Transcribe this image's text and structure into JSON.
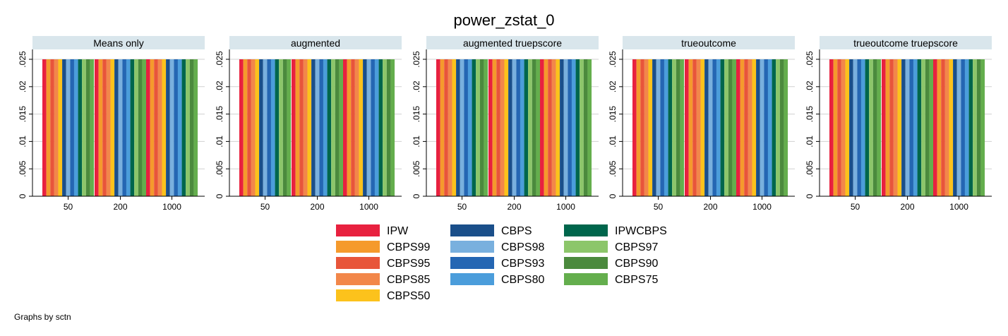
{
  "chart_data": {
    "type": "bar",
    "title": "power_zstat_0",
    "footnote": "Graphs by sctn",
    "panels": [
      "Means only",
      "augmented",
      "augmented truepscore",
      "trueoutcome",
      "trueoutcome truepscore"
    ],
    "categories": [
      "50",
      "200",
      "1000"
    ],
    "ylim": [
      0,
      0.025
    ],
    "yticks": [
      {
        "value": 0,
        "label": "0"
      },
      {
        "value": 0.005,
        "label": ".005"
      },
      {
        "value": 0.01,
        "label": ".01"
      },
      {
        "value": 0.015,
        "label": ".015"
      },
      {
        "value": 0.02,
        "label": ".02"
      },
      {
        "value": 0.025,
        "label": ".025"
      }
    ],
    "grid": true,
    "legend_position": "bottom",
    "series": [
      {
        "name": "IPW",
        "color": "#e8213f",
        "values": [
          0.025,
          0.025,
          0.025
        ]
      },
      {
        "name": "CBPS",
        "color": "#1a4f8a",
        "values": [
          0.025,
          0.025,
          0.025
        ]
      },
      {
        "name": "IPWCBPS",
        "color": "#00664c",
        "values": [
          0.025,
          0.025,
          0.025
        ]
      },
      {
        "name": "CBPS99",
        "color": "#f59a2c",
        "values": [
          0.025,
          0.025,
          0.025
        ]
      },
      {
        "name": "CBPS98",
        "color": "#79b0de",
        "values": [
          0.025,
          0.025,
          0.025
        ]
      },
      {
        "name": "CBPS97",
        "color": "#8cc66a",
        "values": [
          0.025,
          0.025,
          0.025
        ]
      },
      {
        "name": "CBPS95",
        "color": "#e8553a",
        "values": [
          0.025,
          0.025,
          0.025
        ]
      },
      {
        "name": "CBPS93",
        "color": "#2466b3",
        "values": [
          0.025,
          0.025,
          0.025
        ]
      },
      {
        "name": "CBPS90",
        "color": "#4b8a3d",
        "values": [
          0.025,
          0.025,
          0.025
        ]
      },
      {
        "name": "CBPS85",
        "color": "#f2874a",
        "values": [
          0.025,
          0.025,
          0.025
        ]
      },
      {
        "name": "CBPS80",
        "color": "#4b9ddb",
        "values": [
          0.025,
          0.025,
          0.025
        ]
      },
      {
        "name": "CBPS75",
        "color": "#64ae4d",
        "values": [
          0.025,
          0.025,
          0.025
        ]
      },
      {
        "name": "CBPS50",
        "color": "#fcc21c",
        "values": [
          0.025,
          0.025,
          0.025
        ]
      }
    ]
  }
}
